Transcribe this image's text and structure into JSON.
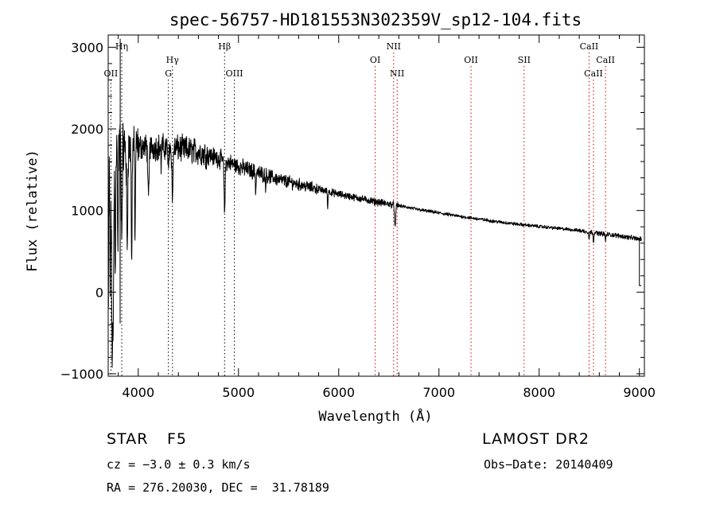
{
  "chart_data": {
    "type": "line",
    "title": "spec-56757-HD181553N302359V_sp12-104.fits",
    "xlabel": "Wavelength (Å)",
    "ylabel": "Flux (relative)",
    "xlim": [
      3700,
      9050
    ],
    "ylim": [
      -1030,
      3150
    ],
    "xticks": [
      4000,
      5000,
      6000,
      7000,
      8000,
      9000
    ],
    "yticks": [
      -1000,
      0,
      1000,
      2000,
      3000
    ],
    "continuum": [
      [
        3800,
        1750
      ],
      [
        4000,
        1780
      ],
      [
        4200,
        1780
      ],
      [
        4400,
        1760
      ],
      [
        4600,
        1720
      ],
      [
        4800,
        1640
      ],
      [
        5000,
        1540
      ],
      [
        5200,
        1460
      ],
      [
        5400,
        1380
      ],
      [
        5600,
        1320
      ],
      [
        5800,
        1260
      ],
      [
        6000,
        1200
      ],
      [
        6200,
        1150
      ],
      [
        6400,
        1100
      ],
      [
        6600,
        1060
      ],
      [
        6800,
        1010
      ],
      [
        7000,
        970
      ],
      [
        7200,
        930
      ],
      [
        7400,
        895
      ],
      [
        7600,
        860
      ],
      [
        7800,
        830
      ],
      [
        8000,
        805
      ],
      [
        8200,
        780
      ],
      [
        8400,
        755
      ],
      [
        8600,
        720
      ],
      [
        8800,
        690
      ],
      [
        9000,
        650
      ]
    ],
    "absorption": [
      {
        "x": 3705,
        "depth": 1000,
        "width": 4
      },
      {
        "x": 3720,
        "depth": 1700,
        "width": 6
      },
      {
        "x": 3738,
        "depth": 2100,
        "width": 8
      },
      {
        "x": 3750,
        "depth": 2100,
        "width": 8
      },
      {
        "x": 3770,
        "depth": 1600,
        "width": 5
      },
      {
        "x": 3797,
        "depth": 1300,
        "width": 5
      },
      {
        "x": 3835,
        "depth": 1100,
        "width": 6
      },
      {
        "x": 3889,
        "depth": 1250,
        "width": 7
      },
      {
        "x": 3934,
        "depth": 1550,
        "width": 5
      },
      {
        "x": 3968,
        "depth": 1200,
        "width": 5
      },
      {
        "x": 4102,
        "depth": 700,
        "width": 8
      },
      {
        "x": 4227,
        "depth": 300,
        "width": 3
      },
      {
        "x": 4300,
        "depth": 350,
        "width": 5
      },
      {
        "x": 4341,
        "depth": 600,
        "width": 8
      },
      {
        "x": 4861,
        "depth": 600,
        "width": 8
      },
      {
        "x": 5172,
        "depth": 250,
        "width": 5
      },
      {
        "x": 5270,
        "depth": 180,
        "width": 3
      },
      {
        "x": 5890,
        "depth": 220,
        "width": 4
      },
      {
        "x": 6563,
        "depth": 280,
        "width": 8
      },
      {
        "x": 8498,
        "depth": 90,
        "width": 5
      },
      {
        "x": 8542,
        "depth": 110,
        "width": 5
      },
      {
        "x": 8662,
        "depth": 90,
        "width": 5
      }
    ],
    "edges": {
      "blue_spike_x": 3820,
      "blue_spike_y": 3100,
      "blue_dip_y": -380,
      "red_drop_x": 9000,
      "red_drop_y": 80
    },
    "lines": [
      {
        "label": "Hη",
        "x": 3835,
        "row": 1,
        "color": "#000000"
      },
      {
        "label": "OII",
        "x": 3727,
        "row": 3,
        "color": "#000000"
      },
      {
        "label": "Hγ",
        "x": 4341,
        "row": 2,
        "color": "#000000"
      },
      {
        "label": "G",
        "x": 4300,
        "row": 3,
        "color": "#000000"
      },
      {
        "label": "Hβ",
        "x": 4861,
        "row": 1,
        "color": "#000000"
      },
      {
        "label": "OIII",
        "x": 4959,
        "row": 3,
        "color": "#000000"
      },
      {
        "label": "OI",
        "x": 6364,
        "row": 2,
        "color": "#cc0000"
      },
      {
        "label": "NII",
        "x": 6548,
        "row": 1,
        "color": "#cc0000"
      },
      {
        "label": "NII",
        "x": 6583,
        "row": 3,
        "color": "#cc0000"
      },
      {
        "label": "OII",
        "x": 7320,
        "row": 2,
        "color": "#cc0000"
      },
      {
        "label": "SII",
        "x": 7850,
        "row": 2,
        "color": "#cc0000"
      },
      {
        "label": "CaII",
        "x": 8498,
        "row": 1,
        "color": "#cc0000"
      },
      {
        "label": "CaII",
        "x": 8542,
        "row": 3,
        "color": "#cc0000"
      },
      {
        "label": "CaII",
        "x": 8662,
        "row": 2,
        "color": "#cc0000"
      }
    ],
    "grid": false,
    "legend": "none"
  },
  "info": {
    "class_label": "STAR",
    "subclass": "F5",
    "survey": "LAMOST DR2",
    "cz": "cz = −3.0 ± 0.3 km/s",
    "obs_date": "Obs−Date: 20140409",
    "coords": "RA = 276.20030, DEC =  31.78189"
  }
}
